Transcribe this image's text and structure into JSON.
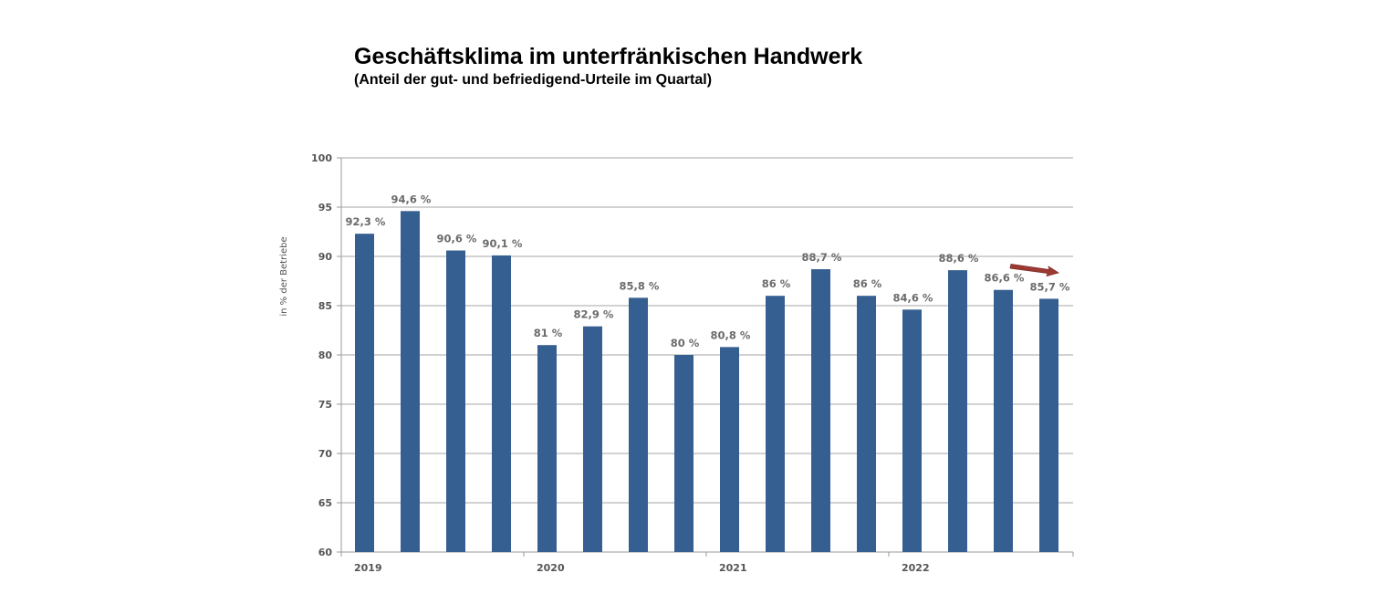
{
  "chart_data": {
    "type": "bar",
    "title": "Geschäftsklima im unterfränkischen Handwerk",
    "subtitle": "(Anteil der gut- und befriedigend-Urteile im Quartal)",
    "ylabel": "in % der Betriebe",
    "ylim": [
      60,
      100
    ],
    "yticks": [
      60,
      65,
      70,
      75,
      80,
      85,
      90,
      95,
      100
    ],
    "grid": true,
    "bar_color": "#365f91",
    "arrow_color": "#9e3a34",
    "year_labels": [
      "2019",
      "2020",
      "2021",
      "2022"
    ],
    "categories": [
      "2019 Q1",
      "2019 Q2",
      "2019 Q3",
      "2019 Q4",
      "2020 Q1",
      "2020 Q2",
      "2020 Q3",
      "2020 Q4",
      "2021 Q1",
      "2021 Q2",
      "2021 Q3",
      "2021 Q4",
      "2022 Q1",
      "2022 Q2",
      "2022 Q3",
      "2022 Q4"
    ],
    "values": [
      92.3,
      94.6,
      90.6,
      90.1,
      81,
      82.9,
      85.8,
      80,
      80.8,
      86,
      88.7,
      86,
      84.6,
      88.6,
      86.6,
      85.7
    ],
    "data_labels": [
      "92,3 %",
      "94,6 %",
      "90,6 %",
      "90,1 %",
      "81 %",
      "82,9 %",
      "85,8 %",
      "80 %",
      "80,8 %",
      "86 %",
      "88,7 %",
      "86 %",
      "84,6 %",
      "88,6 %",
      "86,6 %",
      "85,7 %"
    ]
  }
}
